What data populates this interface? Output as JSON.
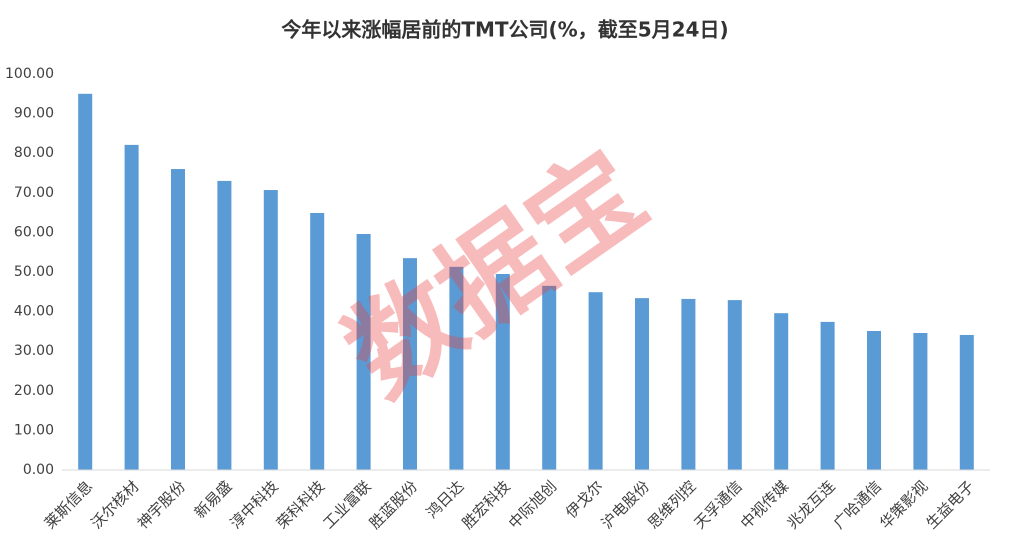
{
  "chart_data": {
    "type": "bar",
    "title": "今年以来涨幅居前的TMT公司(%，截至5月24日)",
    "watermark": "数据宝",
    "categories": [
      "莱斯信息",
      "沃尔核材",
      "神宇股份",
      "新易盛",
      "淳中科技",
      "荣科科技",
      "工业富联",
      "胜蓝股份",
      "鸿日达",
      "胜宏科技",
      "中际旭创",
      "伊戈尔",
      "沪电股份",
      "思维列控",
      "天孚通信",
      "中视传媒",
      "兆龙互连",
      "广哈通信",
      "华策影视",
      "生益电子"
    ],
    "values": [
      95.0,
      82.1,
      76.0,
      73.0,
      70.7,
      64.9,
      59.6,
      53.5,
      51.3,
      49.5,
      46.5,
      44.9,
      43.4,
      43.2,
      42.9,
      39.6,
      37.4,
      35.1,
      34.6,
      34.1
    ],
    "color": "#5b9bd5",
    "ylim": [
      0,
      100
    ],
    "yticks": [
      {
        "value": 0,
        "label": "0.00"
      },
      {
        "value": 10,
        "label": "10.00"
      },
      {
        "value": 20,
        "label": "20.00"
      },
      {
        "value": 30,
        "label": "30.00"
      },
      {
        "value": 40,
        "label": "40.00"
      },
      {
        "value": 50,
        "label": "50.00"
      },
      {
        "value": 60,
        "label": "60.00"
      },
      {
        "value": 70,
        "label": "70.00"
      },
      {
        "value": 80,
        "label": "80.00"
      },
      {
        "value": 90,
        "label": "90.00"
      },
      {
        "value": 100,
        "label": "100.00"
      }
    ],
    "grid": false
  }
}
